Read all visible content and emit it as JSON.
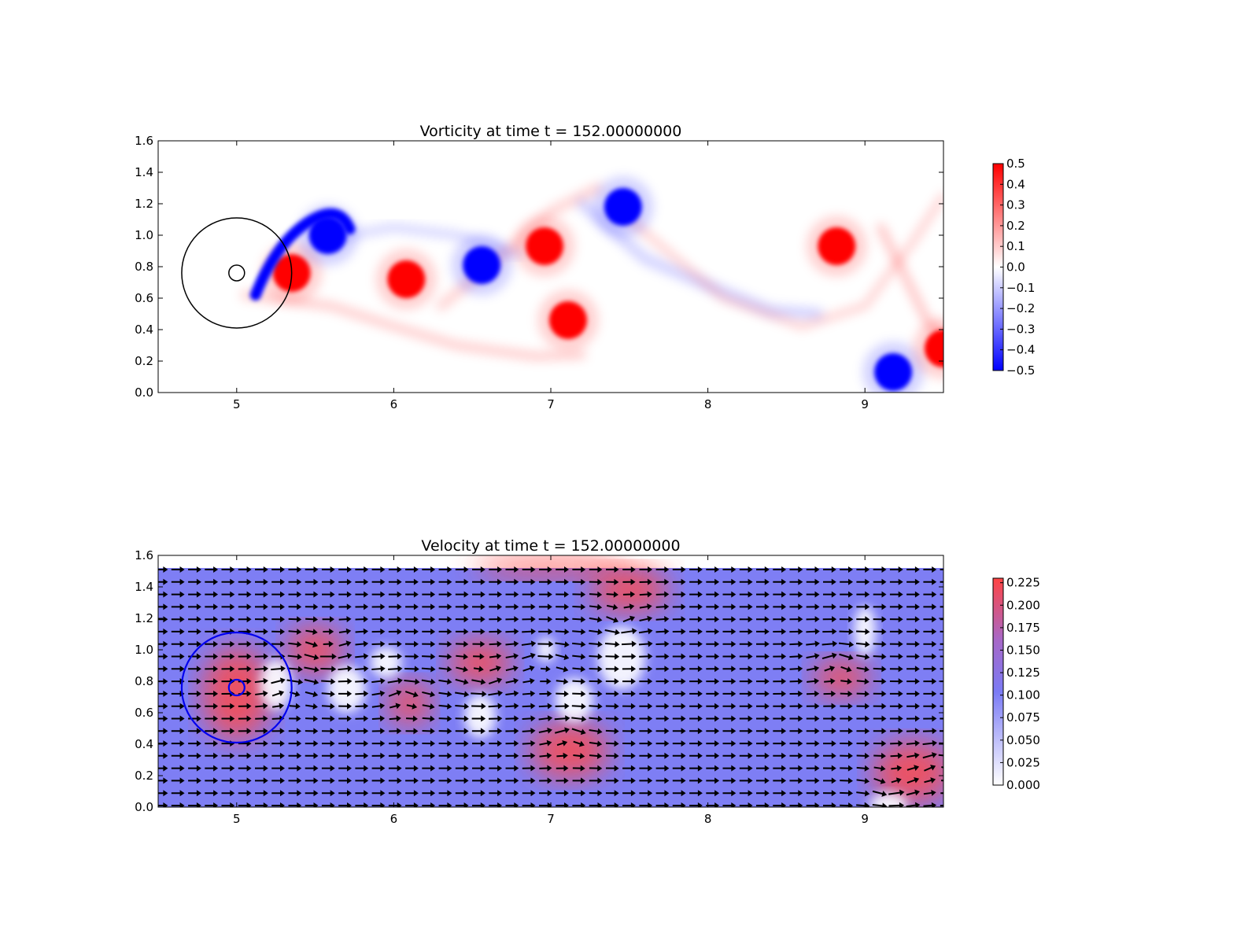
{
  "chart_data": [
    {
      "type": "heatmap",
      "title": "Vorticity at time t =   152.00000000",
      "xlabel": "",
      "ylabel": "",
      "xlim": [
        4.5,
        9.5
      ],
      "ylim": [
        0.0,
        1.6
      ],
      "x_ticks": [
        5,
        6,
        7,
        8,
        9
      ],
      "y_ticks": [
        0.0,
        0.2,
        0.4,
        0.6,
        0.8,
        1.0,
        1.2,
        1.4,
        1.6
      ],
      "grid": false,
      "colormap": {
        "low": "#0000ff",
        "mid": "#ffffff",
        "high": "#ff0000"
      },
      "colorbar": {
        "range": [
          -0.5,
          0.5
        ],
        "ticks": [
          -0.5,
          -0.4,
          -0.3,
          -0.2,
          -0.1,
          0.0,
          0.1,
          0.2,
          0.3,
          0.4,
          0.5
        ]
      },
      "cylinder_center": [
        5.0,
        0.76
      ],
      "circle_radii": [
        0.05,
        0.35
      ],
      "circle_color": "#000000",
      "vortices": [
        {
          "x": 5.35,
          "y": 0.76,
          "value": 0.5
        },
        {
          "x": 5.58,
          "y": 1.0,
          "value": -0.5
        },
        {
          "x": 6.08,
          "y": 0.72,
          "value": 0.5
        },
        {
          "x": 6.56,
          "y": 0.81,
          "value": -0.5
        },
        {
          "x": 6.96,
          "y": 0.93,
          "value": 0.5
        },
        {
          "x": 7.11,
          "y": 0.46,
          "value": 0.5
        },
        {
          "x": 7.46,
          "y": 1.18,
          "value": -0.5
        },
        {
          "x": 8.82,
          "y": 0.93,
          "value": 0.5
        },
        {
          "x": 9.18,
          "y": 0.13,
          "value": -0.5
        },
        {
          "x": 9.5,
          "y": 0.28,
          "value": 0.5
        }
      ]
    },
    {
      "type": "heatmap",
      "title": "Velocity at time t =   152.00000000",
      "xlabel": "",
      "ylabel": "",
      "xlim": [
        4.5,
        9.5
      ],
      "ylim": [
        0.0,
        1.6
      ],
      "x_ticks": [
        5,
        6,
        7,
        8,
        9
      ],
      "y_ticks": [
        0.0,
        0.2,
        0.4,
        0.6,
        0.8,
        1.0,
        1.2,
        1.4,
        1.6
      ],
      "grid": false,
      "overlay": "quiver",
      "domain_top": 1.52,
      "colormap": {
        "low": "#ffffff",
        "mid": "#7b7bf5",
        "high": "#ff4444"
      },
      "colorbar": {
        "range": [
          0.0,
          0.23
        ],
        "ticks": [
          0.0,
          0.025,
          0.05,
          0.075,
          0.1,
          0.125,
          0.15,
          0.175,
          0.2,
          0.225
        ]
      },
      "cylinder_center": [
        5.0,
        0.76
      ],
      "circle_radii": [
        0.05,
        0.35
      ],
      "circle_color": "#0000ee"
    }
  ]
}
